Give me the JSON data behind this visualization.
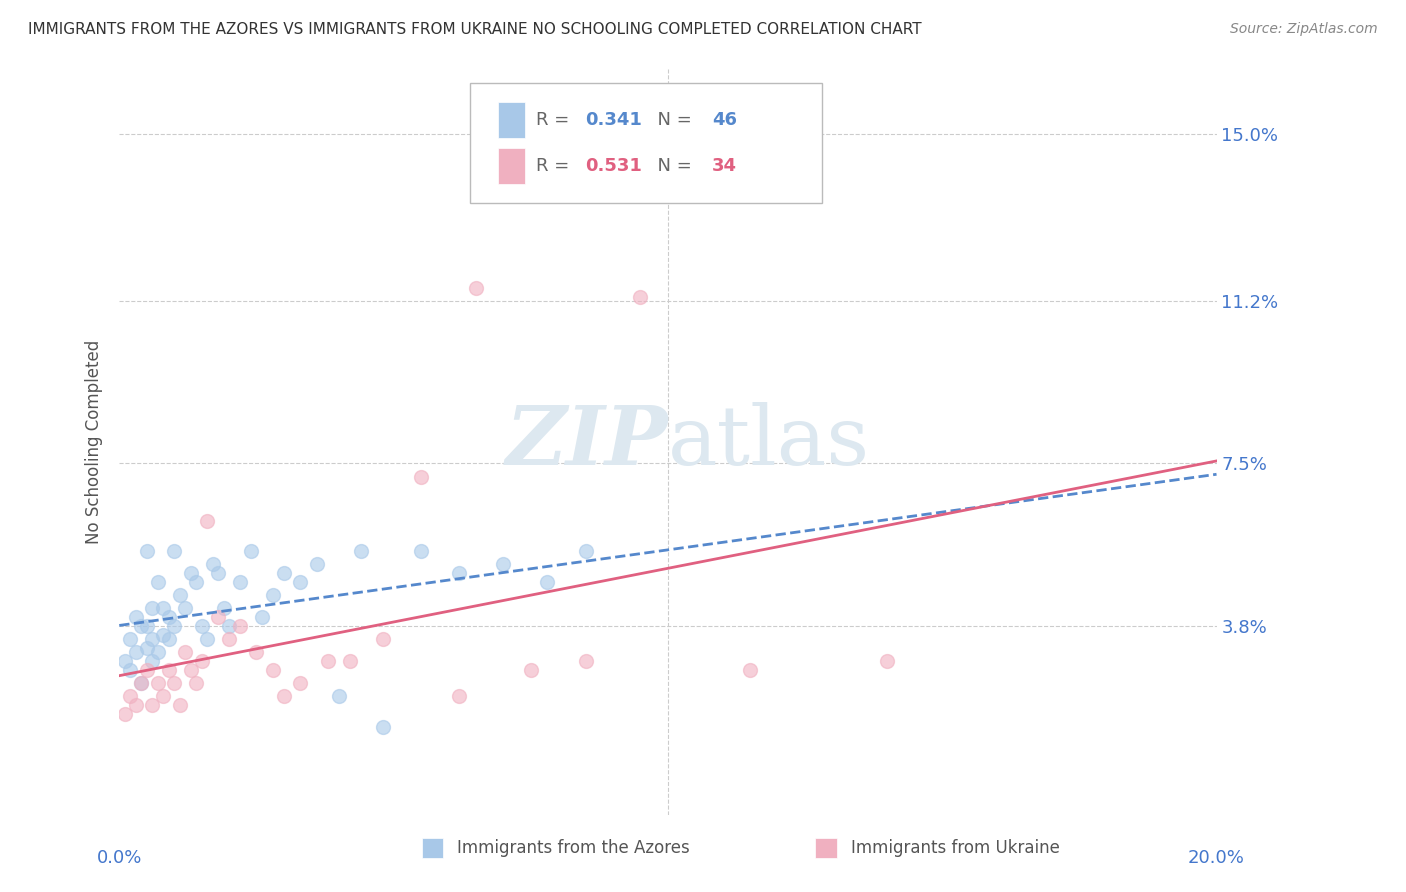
{
  "title": "IMMIGRANTS FROM THE AZORES VS IMMIGRANTS FROM UKRAINE NO SCHOOLING COMPLETED CORRELATION CHART",
  "source": "Source: ZipAtlas.com",
  "ylabel": "No Schooling Completed",
  "ytick_labels": [
    "15.0%",
    "11.2%",
    "7.5%",
    "3.8%"
  ],
  "ytick_values": [
    0.15,
    0.112,
    0.075,
    0.038
  ],
  "xlim": [
    0.0,
    0.2
  ],
  "ylim": [
    -0.005,
    0.165
  ],
  "series1_name": "Immigrants from the Azores",
  "series1_R": "0.341",
  "series1_N": "46",
  "series1_color": "#a8c8e8",
  "series1_line_color": "#5588cc",
  "series2_name": "Immigrants from Ukraine",
  "series2_R": "0.531",
  "series2_N": "34",
  "series2_color": "#f0b0c0",
  "series2_line_color": "#e06080",
  "watermark_color": "#dde8f0",
  "background_color": "#ffffff",
  "grid_color": "#cccccc",
  "tick_label_color": "#4477cc",
  "title_color": "#333333",
  "source_color": "#888888",
  "ylabel_color": "#555555",
  "series1_x": [
    0.001,
    0.002,
    0.002,
    0.003,
    0.003,
    0.004,
    0.004,
    0.005,
    0.005,
    0.005,
    0.006,
    0.006,
    0.006,
    0.007,
    0.007,
    0.008,
    0.008,
    0.009,
    0.009,
    0.01,
    0.01,
    0.011,
    0.012,
    0.013,
    0.014,
    0.015,
    0.016,
    0.017,
    0.018,
    0.019,
    0.02,
    0.022,
    0.024,
    0.026,
    0.028,
    0.03,
    0.033,
    0.036,
    0.04,
    0.044,
    0.048,
    0.055,
    0.062,
    0.07,
    0.078,
    0.085
  ],
  "series1_y": [
    0.03,
    0.028,
    0.035,
    0.032,
    0.04,
    0.025,
    0.038,
    0.033,
    0.038,
    0.055,
    0.03,
    0.035,
    0.042,
    0.032,
    0.048,
    0.036,
    0.042,
    0.035,
    0.04,
    0.038,
    0.055,
    0.045,
    0.042,
    0.05,
    0.048,
    0.038,
    0.035,
    0.052,
    0.05,
    0.042,
    0.038,
    0.048,
    0.055,
    0.04,
    0.045,
    0.05,
    0.048,
    0.052,
    0.022,
    0.055,
    0.015,
    0.055,
    0.05,
    0.052,
    0.048,
    0.055
  ],
  "series2_x": [
    0.001,
    0.002,
    0.003,
    0.004,
    0.005,
    0.006,
    0.007,
    0.008,
    0.009,
    0.01,
    0.011,
    0.012,
    0.013,
    0.014,
    0.015,
    0.016,
    0.018,
    0.02,
    0.022,
    0.025,
    0.028,
    0.03,
    0.033,
    0.038,
    0.042,
    0.048,
    0.055,
    0.062,
    0.065,
    0.075,
    0.085,
    0.095,
    0.115,
    0.14
  ],
  "series2_y": [
    0.018,
    0.022,
    0.02,
    0.025,
    0.028,
    0.02,
    0.025,
    0.022,
    0.028,
    0.025,
    0.02,
    0.032,
    0.028,
    0.025,
    0.03,
    0.062,
    0.04,
    0.035,
    0.038,
    0.032,
    0.028,
    0.022,
    0.025,
    0.03,
    0.03,
    0.035,
    0.072,
    0.022,
    0.115,
    0.028,
    0.03,
    0.113,
    0.028,
    0.03
  ]
}
